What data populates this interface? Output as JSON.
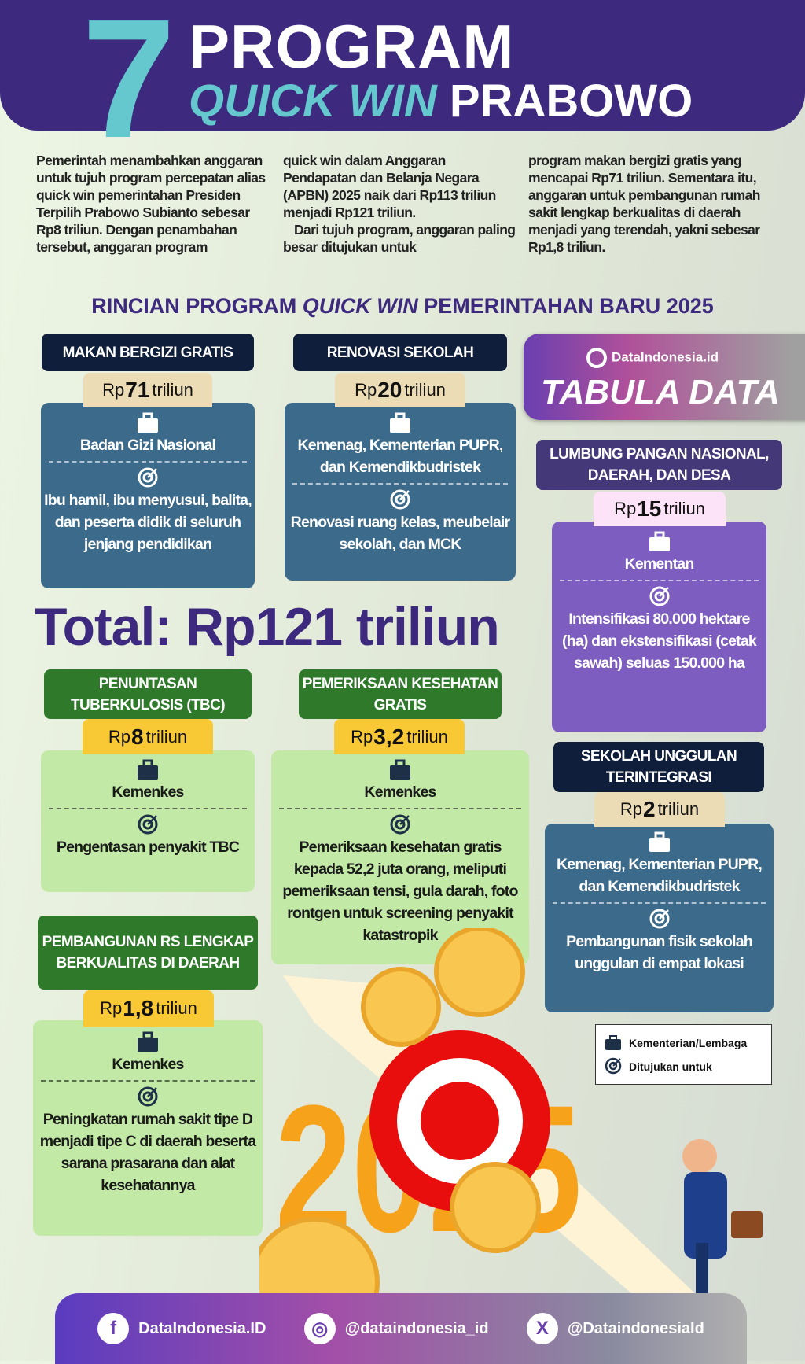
{
  "header": {
    "number": "7",
    "line1": "PROGRAM",
    "line2_accent": "QUICK WIN",
    "line2_rest": "PRABOWO"
  },
  "intro": {
    "col1": "Pemerintah menambahkan anggaran untuk tujuh program percepatan alias quick win pemerintahan Presiden Terpilih Prabowo Subianto sebesar Rp8 triliun. Dengan penambahan tersebut, anggaran program",
    "col2a": "quick win dalam Anggaran Pendapatan dan Belanja Negara (APBN) 2025 naik dari Rp113 triliun menjadi Rp121 triliun.",
    "col2b": "Dari tujuh program, anggaran paling besar ditujukan untuk",
    "col3": "program makan bergizi gratis yang mencapai Rp71 triliun. Sementara itu, anggaran untuk pembangunan rumah sakit lengkap berkualitas di daerah menjadi yang terendah, yakni sebesar Rp1,8 triliun."
  },
  "subtitle": {
    "a": "RINCIAN PROGRAM ",
    "b": "QUICK WIN",
    "c": " PEMERINTAHAN BARU 2025"
  },
  "brand": {
    "site": "DataIndonesia.id",
    "name": "TABULA DATA"
  },
  "total": "Total: Rp121 triliun",
  "programs": [
    {
      "title": "MAKAN BERGIZI GRATIS",
      "rp": "Rp",
      "amount": "71",
      "unit": "triliun",
      "agency": "Badan Gizi Nasional",
      "target": "Ibu hamil, ibu menyusui, balita, dan peserta didik di seluruh jenjang pendidikan"
    },
    {
      "title": "RENOVASI SEKOLAH",
      "rp": "Rp",
      "amount": "20",
      "unit": "triliun",
      "agency": "Kemenag, Kementerian PUPR, dan Kemendikbudristek",
      "target": "Renovasi ruang kelas, meubelair sekolah, dan MCK"
    },
    {
      "title": "LUMBUNG PANGAN NASIONAL, DAERAH, DAN DESA",
      "rp": "Rp",
      "amount": "15",
      "unit": "triliun",
      "agency": "Kementan",
      "target": "Intensifikasi 80.000 hektare (ha) dan ekstensifikasi (cetak sawah) seluas 150.000 ha"
    },
    {
      "title": "PENUNTASAN TUBERKULOSIS (TBC)",
      "rp": "Rp",
      "amount": "8",
      "unit": "triliun",
      "agency": "Kemenkes",
      "target": "Pengentasan penyakit TBC"
    },
    {
      "title": "PEMERIKSAAN KESEHATAN GRATIS",
      "rp": "Rp",
      "amount": "3,2",
      "unit": "triliun",
      "agency": "Kemenkes",
      "target": "Pemeriksaan kesehatan gratis kepada 52,2 juta orang, meliputi pemeriksaan tensi, gula darah, foto rontgen untuk screening penyakit katastropik"
    },
    {
      "title": "SEKOLAH UNGGULAN TERINTEGRASI",
      "rp": "Rp",
      "amount": "2",
      "unit": "triliun",
      "agency": "Kemenag, Kementerian PUPR, dan Kemendikbudristek",
      "target": "Pembangunan fisik sekolah unggulan di empat lokasi"
    },
    {
      "title": "PEMBANGUNAN RS LENGKAP BERKUALITAS DI DAERAH",
      "rp": "Rp",
      "amount": "1,8",
      "unit": "triliun",
      "agency": "Kemenkes",
      "target": "Peningkatan rumah sakit tipe D menjadi tipe C di daerah beserta sarana prasarana dan alat kesehatannya"
    }
  ],
  "legend": {
    "agency": "Kementerian/Lembaga",
    "target": "Ditujukan untuk"
  },
  "decoration": {
    "year": "2025",
    "coin": "Rp"
  },
  "footer": {
    "facebook": "DataIndonesia.ID",
    "instagram": "@dataindonesia_id",
    "x": "@DataindonesiaId"
  },
  "colors": {
    "header": "#3d2a7e",
    "accent": "#66c8cf",
    "blue_body": "#3c6a8a",
    "navy_title": "#0f1e3a",
    "green_title": "#2f7a2a",
    "green_body": "#c2e9a6",
    "purple_body": "#7d5dbf"
  }
}
